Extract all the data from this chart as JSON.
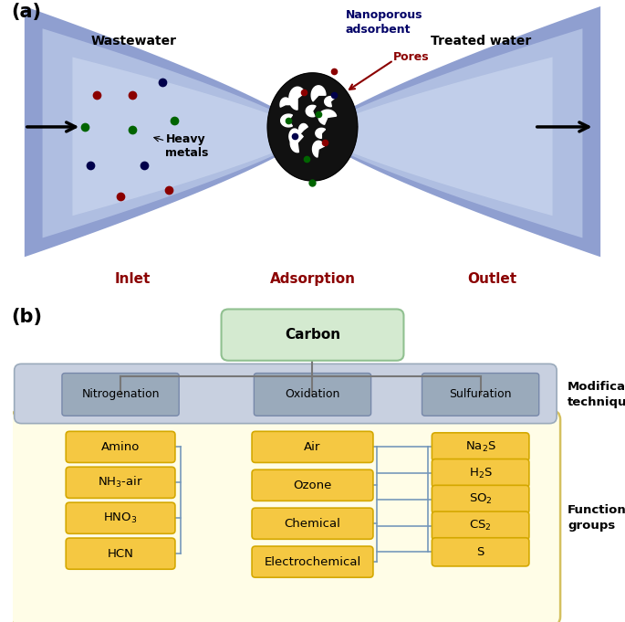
{
  "panel_a": {
    "label": "(a)",
    "title_nanoporous": "Nanoporous\nadsorbent",
    "label_pores": "Pores",
    "label_wastewater": "Wastewater",
    "label_heavy_metals": "Heavy\nmetals",
    "label_treated": "Treated water",
    "label_inlet": "Inlet",
    "label_adsorption": "Adsorption",
    "label_outlet": "Outlet",
    "funnel_dark_color": "#7B8EC8",
    "funnel_light_color": "#C0CDE8",
    "sphere_color": "#111111",
    "dot_colors_left": [
      [
        1.4,
        3.5,
        "#8B0000"
      ],
      [
        2.0,
        3.5,
        "#8B0000"
      ],
      [
        1.2,
        3.0,
        "#006400"
      ],
      [
        2.0,
        2.95,
        "#006400"
      ],
      [
        2.7,
        3.1,
        "#006400"
      ],
      [
        1.3,
        2.4,
        "#00004B"
      ],
      [
        2.2,
        2.4,
        "#00004B"
      ],
      [
        1.8,
        1.9,
        "#8B0000"
      ],
      [
        2.6,
        2.0,
        "#8B0000"
      ],
      [
        2.5,
        3.7,
        "#00004B"
      ]
    ],
    "dot_colors_in": [
      [
        4.85,
        3.55,
        "#8B0000"
      ],
      [
        5.1,
        3.2,
        "#006400"
      ],
      [
        4.7,
        2.85,
        "#00004B"
      ],
      [
        5.2,
        2.75,
        "#8B0000"
      ],
      [
        4.6,
        3.1,
        "#006400"
      ],
      [
        5.35,
        3.5,
        "#00004B"
      ],
      [
        4.9,
        2.5,
        "#006400"
      ]
    ]
  },
  "panel_b": {
    "label": "(b)",
    "carbon_box_color": "#D4EAD0",
    "carbon_box_edge": "#90C090",
    "carbon_text": "Carbon",
    "header_bg_color": "#C8D0E0",
    "header_bg_edge": "#9AAABB",
    "header_cell_color": "#9AAABB",
    "header_cell_edge": "#7788AA",
    "header_texts": [
      "Nitrogenation",
      "Oxidation",
      "Sulfuration"
    ],
    "modification_text": "Modification\ntechniques",
    "functional_text": "Functional\ngroups",
    "item_box_color": "#F5C842",
    "item_box_edge": "#D4A800",
    "bg_outer": "#FFFDE7",
    "bg_outer_edge": "#D4C060",
    "col1_items": [
      "Amino",
      "NH$_3$-air",
      "HNO$_3$",
      "HCN"
    ],
    "col2_items": [
      "Air",
      "Ozone",
      "Chemical",
      "Electrochemical"
    ],
    "col3_items": [
      "Na$_2$S",
      "H$_2$S",
      "SO$_2$",
      "CS$_2$",
      "S"
    ],
    "line_color": "#7799BB",
    "connect_color": "#7799BB"
  }
}
